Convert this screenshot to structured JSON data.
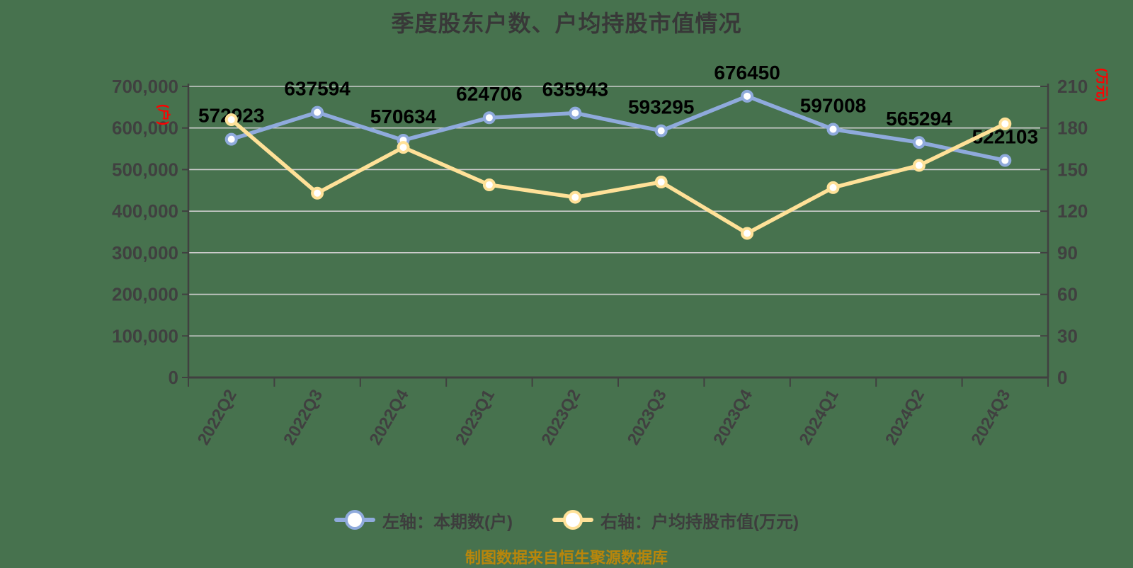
{
  "page": {
    "background_color": "#47724E"
  },
  "title": "季度股东户数、户均持股市值情况",
  "footer": {
    "text": "制图数据来自恒生聚源数据库",
    "color": "#B8860B"
  },
  "legend": [
    {
      "label": "左轴：本期数(户)",
      "color": "#8FAADC"
    },
    {
      "label": "右轴：户均持股市值(万元)",
      "color": "#FFE198"
    }
  ],
  "colors": {
    "background": "#47724E",
    "series_blue": "#8FAADC",
    "series_yellow": "#FFE198",
    "axis_line": "#404040",
    "grid_line": "#CCCCCC",
    "tick_text": "#404040",
    "data_label": "#000000",
    "unit_label_red": "#FF0000",
    "footer_gold": "#B8860B",
    "marker_fill": "#FFFFFF"
  },
  "chart_data": {
    "type": "line",
    "title": "季度股东户数、户均持股市值情况",
    "categories": [
      "2022Q2",
      "2022Q3",
      "2022Q4",
      "2023Q1",
      "2023Q2",
      "2023Q3",
      "2023Q4",
      "2024Q1",
      "2024Q2",
      "2024Q3"
    ],
    "series": [
      {
        "id": "shareholder-count",
        "name": "左轴：本期数(户)",
        "yaxis": "left",
        "color": "#8FAADC",
        "marker": "circle",
        "data_labels": true,
        "values": [
          572923,
          637594,
          570634,
          624706,
          635943,
          593295,
          676450,
          597008,
          565294,
          522103
        ]
      },
      {
        "id": "avg-market-value",
        "name": "右轴：户均持股市值(万元)",
        "yaxis": "right",
        "color": "#FFE198",
        "marker": "circle",
        "data_labels": false,
        "values": [
          186,
          133,
          166,
          139,
          130,
          141,
          104,
          137,
          153,
          183
        ],
        "note": "values estimated from right axis gridlines"
      }
    ],
    "left_axis": {
      "unit": "(户)",
      "min": 0,
      "max": 700000,
      "tick_interval": 100000,
      "ticks": [
        "0",
        "100,000",
        "200,000",
        "300,000",
        "400,000",
        "500,000",
        "600,000",
        "700,000"
      ]
    },
    "right_axis": {
      "unit": "(万元)",
      "min": 0,
      "max": 210,
      "tick_interval": 30,
      "ticks": [
        "0",
        "30",
        "60",
        "90",
        "120",
        "150",
        "180",
        "210"
      ]
    },
    "x_tick_rotation": 60,
    "grid": true,
    "legend_position": "bottom"
  }
}
